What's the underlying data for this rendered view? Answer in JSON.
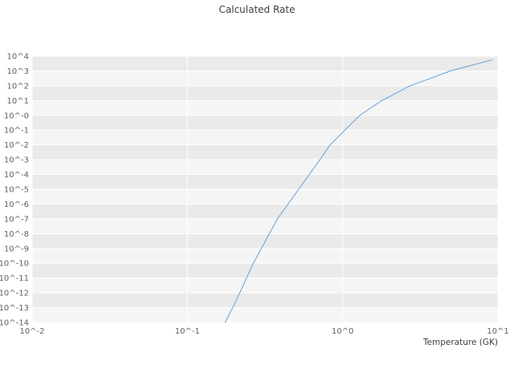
{
  "chart": {
    "title": "Calculated Rate",
    "xlabel": "Temperature (GK)"
  },
  "colors": {
    "line": "#6fa8dc",
    "band_dark": "#eaeaea",
    "band_light": "#f5f5f5",
    "gridline": "#ffffff",
    "tick_text": "#616161",
    "title_text": "#3d3d3d"
  },
  "chart_data": {
    "type": "line",
    "title": "Calculated Rate",
    "xlabel": "Temperature (GK)",
    "ylabel": "",
    "x_scale": "log",
    "y_scale": "log",
    "xlim": [
      0.01,
      10
    ],
    "ylim": [
      1e-14,
      10000
    ],
    "x_tick_labels": [
      "10^-2",
      "10^-1",
      "10^0",
      "10^1"
    ],
    "x_tick_log_values": [
      -2,
      -1,
      0,
      1
    ],
    "y_tick_labels": [
      "10^4",
      "10^3",
      "10^2",
      "10^1",
      "10^-0",
      "10^-1",
      "10^-2",
      "10^-3",
      "10^-4",
      "10^-5",
      "10^-6",
      "10^-7",
      "10^-8",
      "10^-9",
      "10^-10",
      "10^-11",
      "10^-12",
      "10^-13",
      "10^-14"
    ],
    "y_tick_log_values": [
      4,
      3,
      2,
      1,
      0,
      -1,
      -2,
      -3,
      -4,
      -5,
      -6,
      -7,
      -8,
      -9,
      -10,
      -11,
      -12,
      -13,
      -14
    ],
    "grid": "horizontal-bands",
    "legend": "none",
    "series": [
      {
        "name": "calculated rate",
        "x": [
          0.175,
          0.2,
          0.224,
          0.266,
          0.316,
          0.38,
          0.5,
          0.61,
          0.71,
          0.83,
          1.0,
          1.29,
          1.51,
          1.79,
          2.19,
          2.72,
          3.63,
          4.94,
          6.76,
          9.18
        ],
        "y": [
          1e-14,
          1.6e-13,
          2e-12,
          1e-10,
          2.8e-09,
          1e-07,
          5.5e-06,
          0.0001,
          0.00093,
          0.01,
          0.072,
          1.0,
          3.1,
          10,
          30,
          100,
          300,
          1000,
          2400,
          5600
        ]
      }
    ]
  }
}
